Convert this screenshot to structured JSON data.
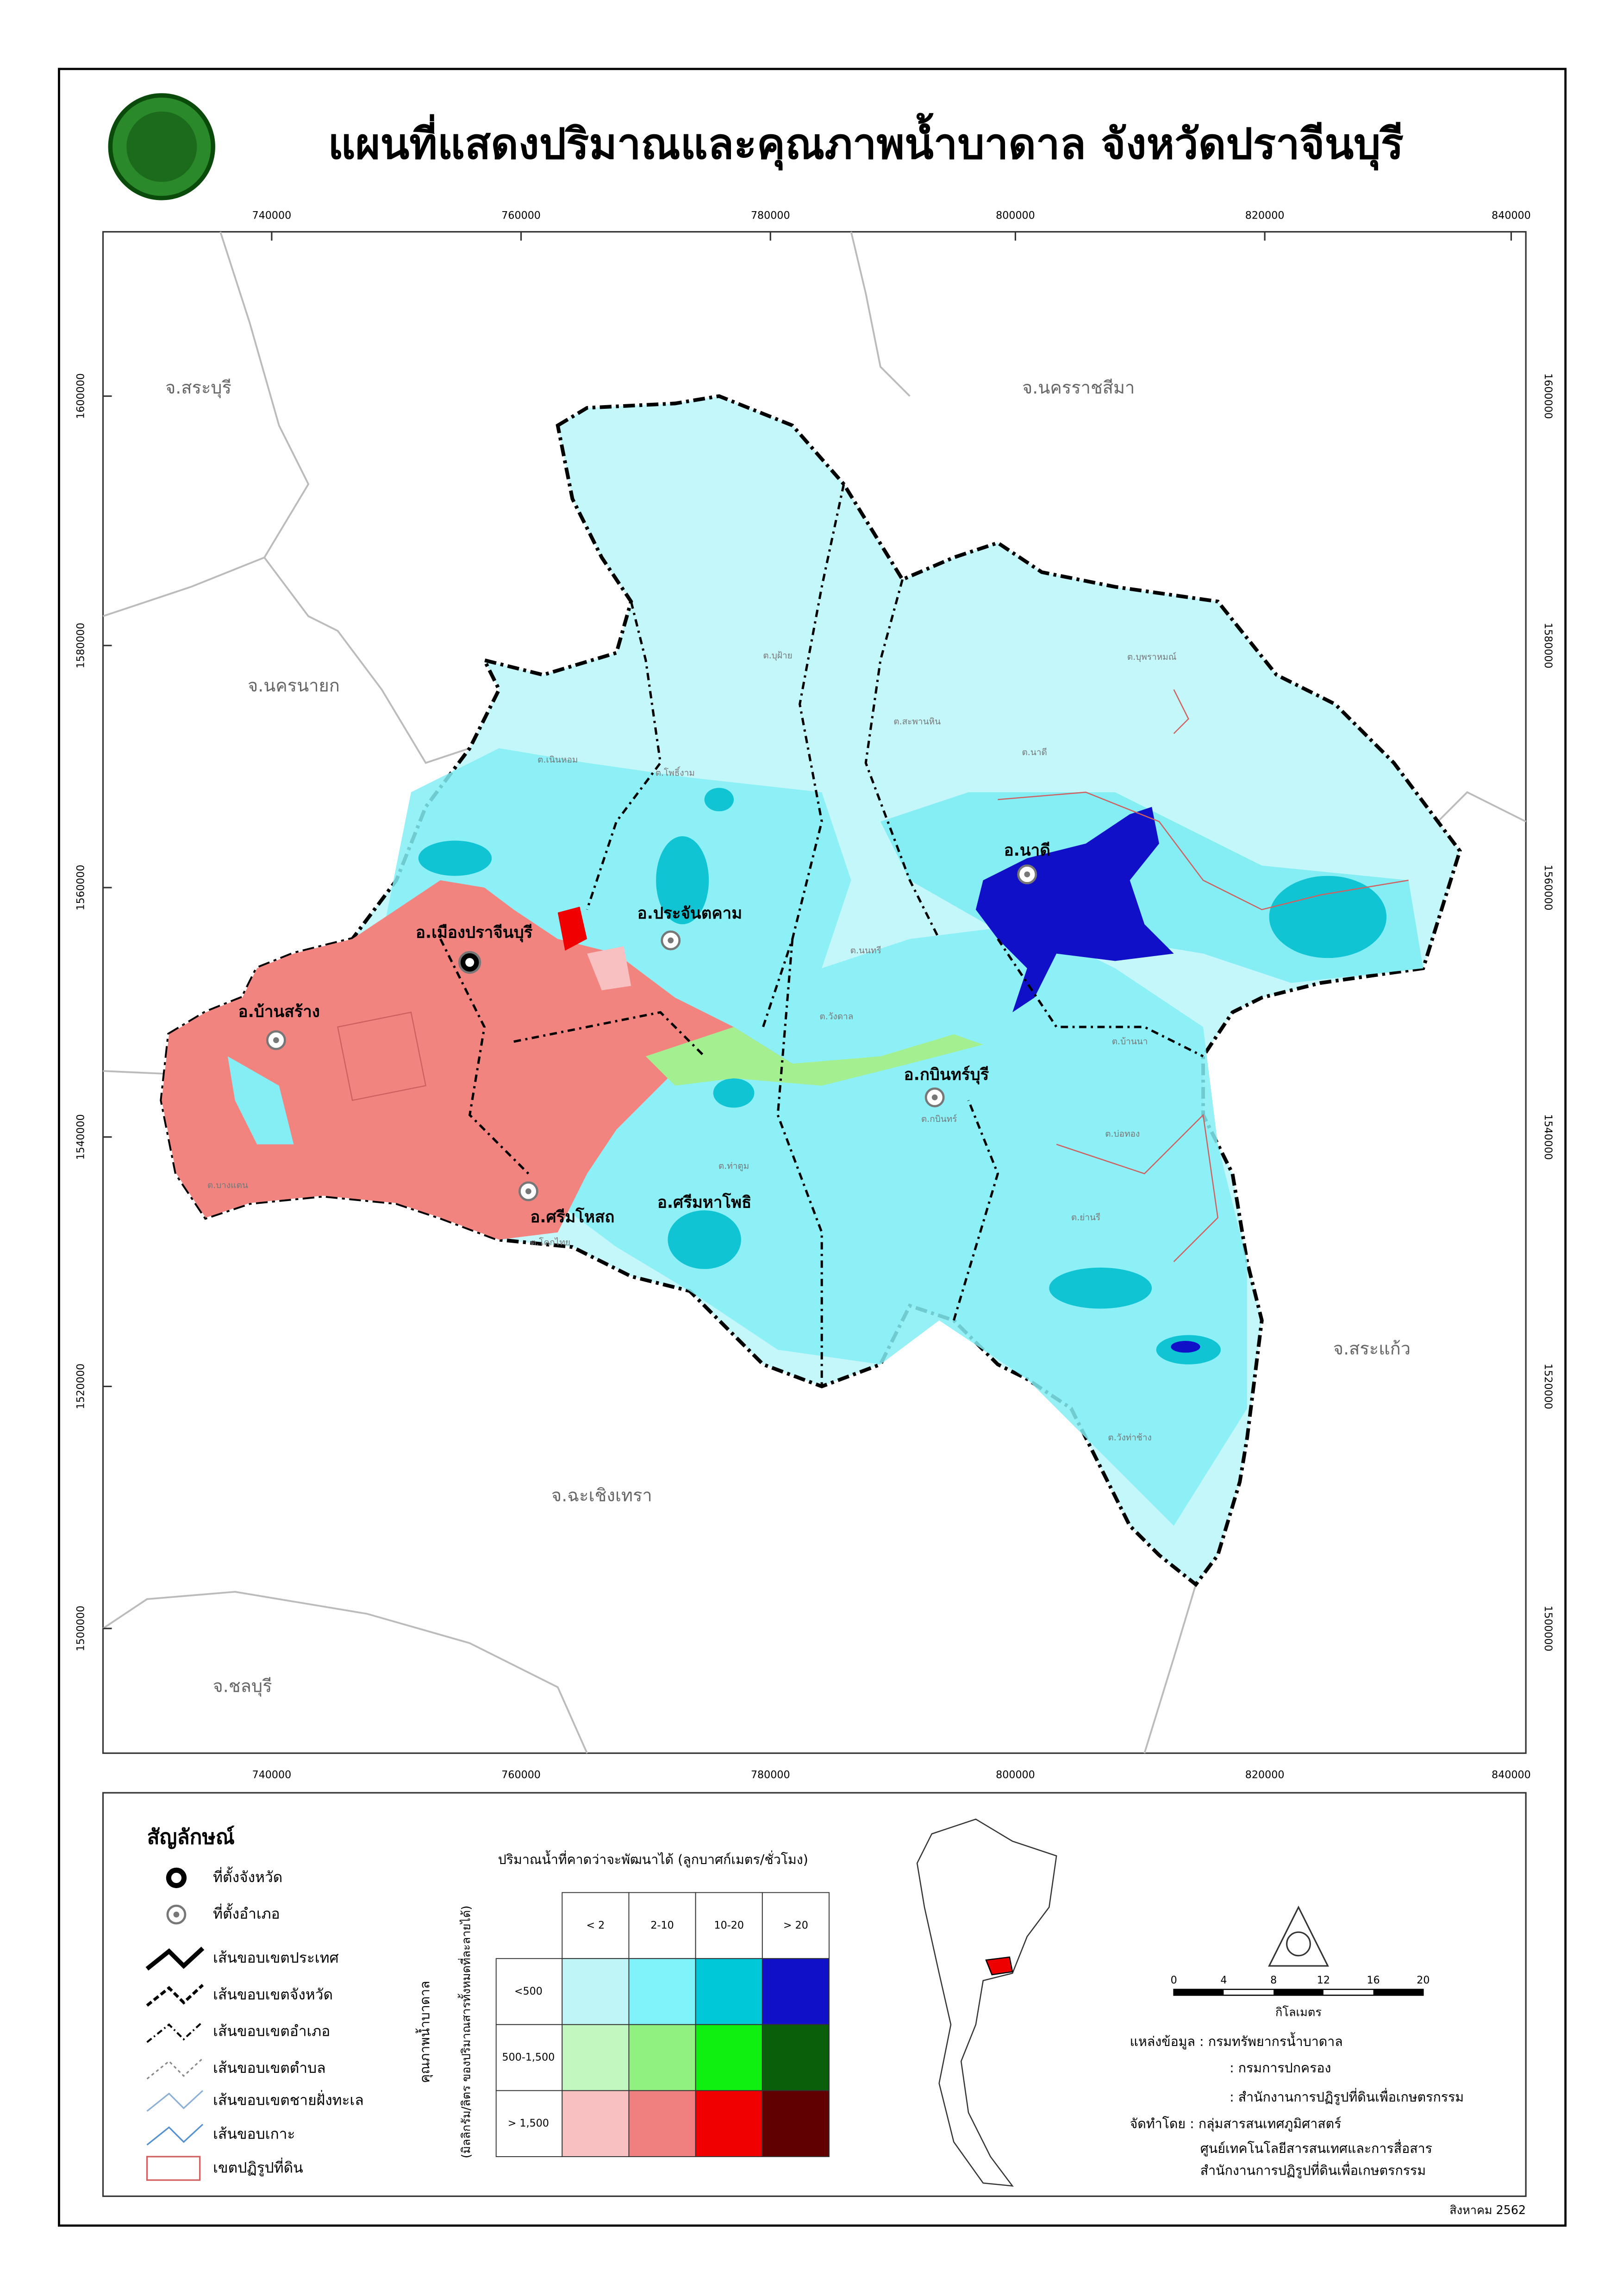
{
  "title": "แผนที่แสดงปริมาณและคุณภาพน้ำบาดาล จังหวัดปราจีนบุรี",
  "coordinates": {
    "x_labels": [
      "740000",
      "760000",
      "780000",
      "800000",
      "820000",
      "840000"
    ],
    "y_labels": [
      "1600000",
      "1580000",
      "1560000",
      "1540000",
      "1520000",
      "1500000"
    ]
  },
  "provinces": [
    "จ.สระบุรี",
    "จ.นครราชสีมา",
    "จ.นครนายก",
    "จ.สระแก้ว",
    "จ.ฉะเชิงเทรา",
    "จ.ชลบุรี"
  ],
  "districts": [
    "อ.เมืองปราจีนบุรี",
    "อ.ประจันตคาม",
    "อ.บ้านสร้าง",
    "อ.ศรีมหาโพธิ",
    "อ.ศรีมโหสถ",
    "อ.กบินทร์บุรี",
    "อ.นาดี"
  ],
  "subdistricts": [
    "ต.บุพราหมณ์",
    "ต.บุฝ้าย",
    "ต.นาดี",
    "ต.บ้านนา",
    "ต.ย่านรี",
    "ต.วังท่าช้าง",
    "ต.สะพานหิน",
    "ต.เนินหอม",
    "ต.โพธิ์งาม",
    "ต.ท่าตูม",
    "ต.บ่อทอง",
    "ต.กบินทร์",
    "ต.นนทรี",
    "ต.วังดาล",
    "ต.บางแตน",
    "ต.โคกไทย"
  ],
  "legend": {
    "title": "สัญลักษณ์",
    "items": [
      "ที่ตั้งจังหวัด",
      "ที่ตั้งอำเภอ",
      "เส้นขอบเขตประเทศ",
      "เส้นขอบเขตจังหวัด",
      "เส้นขอบเขตอำเภอ",
      "เส้นขอบเขตตำบล",
      "เส้นขอบเขตชายฝั่งทะเล",
      "เส้นขอบเกาะ",
      "เขตปฏิรูปที่ดิน"
    ]
  },
  "matrix": {
    "title": "ปริมาณน้ำที่คาดว่าจะพัฒนาได้ (ลูกบาศก์เมตร/ชั่วโมง)",
    "columns": [
      "< 2",
      "2-10",
      "10-20",
      "> 20"
    ],
    "rows": [
      "<500",
      "500-1,500",
      "> 1,500"
    ],
    "axis_label": "คุณภาพน้ำบาดาล",
    "axis_sublabel": "(มิลลิกรัม/ลิตร ของปริมาณสารทั้งหมดที่ละลายได้)"
  },
  "scale": {
    "labels": [
      "0",
      "4",
      "8",
      "12",
      "16",
      "20"
    ],
    "unit": "กิโลเมตร"
  },
  "credits": [
    "แหล่งข้อมูล : กรมทรัพยากรน้ำบาดาล",
    ": กรมการปกครอง",
    ": สำนักงานการปฏิรูปที่ดินเพื่อเกษตรกรรม",
    "จัดทำโดย : กลุ่มสารสนเทศภูมิศาสตร์",
    "ศูนย์เทคโนโลยีสารสนเทศและการสื่อสาร",
    "สำนักงานการปฏิรูปที่ดินเพื่อเกษตรกรรม"
  ],
  "date": "สิงหาคม 2562"
}
